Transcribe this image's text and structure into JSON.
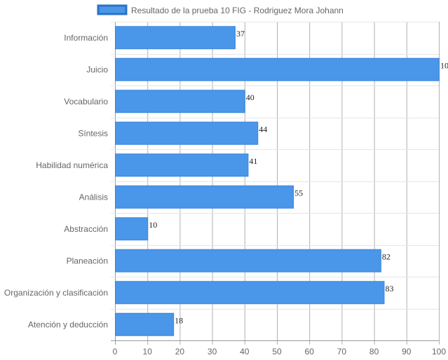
{
  "chart_data": {
    "type": "bar",
    "orientation": "horizontal",
    "categories": [
      "Información",
      "Juicio",
      "Vocabulario",
      "Síntesis",
      "Habilidad numérica",
      "Análisis",
      "Abstracción",
      "Planeación",
      "Organización y clasificación",
      "Atención y deducción"
    ],
    "series": [
      {
        "name": "Resultado de la prueba 10 FIG - Rodriguez Mora Johann",
        "values": [
          37,
          100,
          40,
          44,
          41,
          55,
          10,
          82,
          83,
          18
        ],
        "color": "#4a96e8",
        "border_color": "#3a86e0"
      }
    ],
    "xlim": [
      0,
      100
    ],
    "xticks": [
      0,
      10,
      20,
      30,
      40,
      50,
      60,
      70,
      80,
      90,
      100
    ],
    "grid": true,
    "legend_position": "top",
    "data_labels": true
  }
}
